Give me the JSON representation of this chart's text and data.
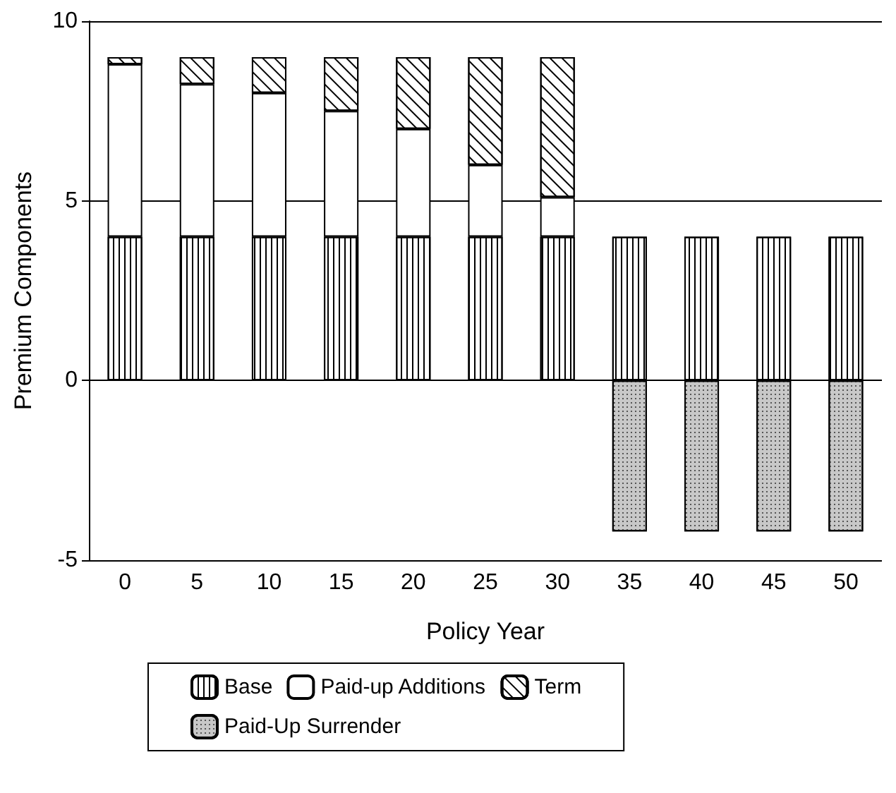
{
  "chart_data": {
    "type": "bar",
    "stacked": true,
    "xlabel": "Policy Year",
    "ylabel": "Premium Components",
    "categories": [
      "0",
      "5",
      "10",
      "15",
      "20",
      "25",
      "30",
      "35",
      "40",
      "45",
      "50"
    ],
    "series": [
      {
        "name": "Base",
        "color": "#ffffff",
        "values": [
          4,
          4,
          4,
          4,
          4,
          4,
          4,
          4,
          4,
          4,
          4
        ]
      },
      {
        "name": "Paid-up Additions",
        "color": "#ffffff",
        "values": [
          4.8,
          4.25,
          4,
          3.5,
          3,
          2,
          1.1,
          null,
          null,
          null,
          null
        ]
      },
      {
        "name": "Term",
        "color": "#ffffff",
        "values": [
          0.2,
          0.75,
          1,
          1.5,
          2,
          3,
          3.9,
          null,
          null,
          null,
          null
        ]
      },
      {
        "name": "Paid-Up Surrender",
        "color": "#c8c8c8",
        "values": [
          null,
          null,
          null,
          null,
          null,
          null,
          null,
          -4.2,
          -4.2,
          -4.2,
          -4.2
        ]
      }
    ],
    "ylim": [
      -5,
      10
    ],
    "yticks": [
      -5,
      0,
      5,
      10
    ],
    "grid": "y",
    "legend": "bottom"
  }
}
